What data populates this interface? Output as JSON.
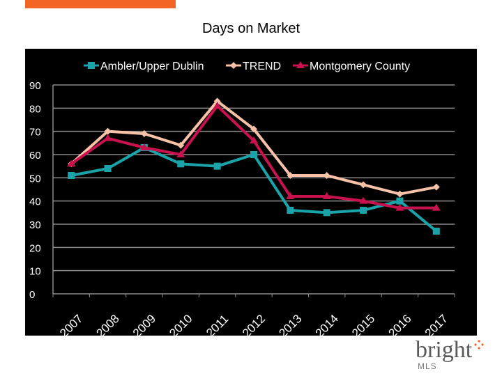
{
  "page": {
    "title": "Days on Market"
  },
  "brand": {
    "name": "bright",
    "sub": "MLS",
    "accent": "#f26522"
  },
  "chart_data": {
    "type": "line",
    "title": "Days on Market",
    "xlabel": "",
    "ylabel": "",
    "ylim": [
      0,
      90
    ],
    "yticks": [
      0,
      10,
      20,
      30,
      40,
      50,
      60,
      70,
      80,
      90
    ],
    "grid": true,
    "legend": "top",
    "categories": [
      "2007",
      "2008",
      "2009",
      "2010",
      "2011",
      "2012",
      "2013",
      "2014",
      "2015",
      "2016",
      "2017"
    ],
    "series": [
      {
        "name": "Ambler/Upper Dublin",
        "color": "#1aa3a9",
        "marker": "square",
        "values": [
          51,
          54,
          63,
          56,
          55,
          60,
          36,
          35,
          36,
          40,
          27
        ]
      },
      {
        "name": "TREND",
        "color": "#f7c2a8",
        "marker": "diamond",
        "values": [
          56,
          70,
          69,
          64,
          83,
          71,
          51,
          51,
          47,
          43,
          46
        ]
      },
      {
        "name": "Montgomery County",
        "color": "#c8124e",
        "marker": "triangle",
        "values": [
          56,
          67,
          63,
          60,
          81,
          66,
          42,
          42,
          40,
          37,
          37
        ]
      }
    ]
  }
}
